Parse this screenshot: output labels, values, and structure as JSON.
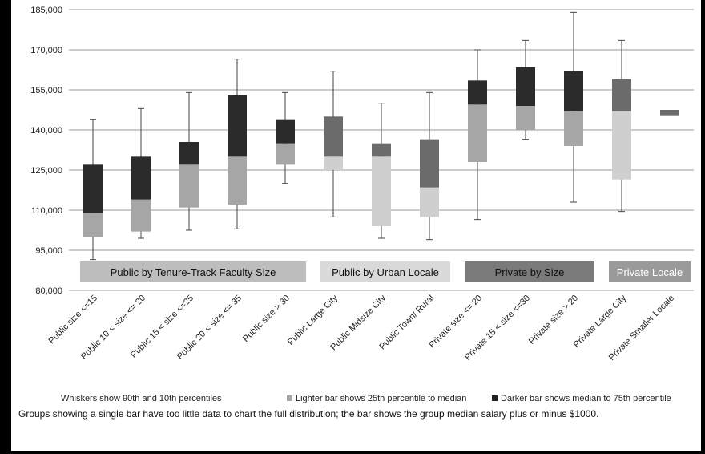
{
  "chart_data": {
    "type": "box",
    "ylim": [
      80000,
      185000
    ],
    "y_ticks": [
      "80,000",
      "95,000",
      "110,000",
      "125,000",
      "140,000",
      "155,000",
      "170,000",
      "185,000"
    ],
    "y_tick_values": [
      80000,
      95000,
      110000,
      125000,
      140000,
      155000,
      170000,
      185000
    ],
    "grid": true,
    "categories": [
      "Public size <=15",
      "Public 10 < size <= 20",
      "Public 15 < size <=25",
      "Public 20 < size <= 35",
      "Public size > 30",
      "Public Large City",
      "Public Midsize City",
      "Public Town/ Rural",
      "Private size <= 20",
      "Private 15 < size <=30",
      "Private size > 20",
      "Private Large City",
      "Private Smaller Locale"
    ],
    "boxes": [
      {
        "p10": 91500,
        "p25": 100000,
        "median": 109000,
        "p75": 127000,
        "p90": 144000,
        "shade": "dark"
      },
      {
        "p10": 99500,
        "p25": 102000,
        "median": 114000,
        "p75": 130000,
        "p90": 148000,
        "shade": "dark"
      },
      {
        "p10": 102500,
        "p25": 111000,
        "median": 127000,
        "p75": 135500,
        "p90": 154000,
        "shade": "dark"
      },
      {
        "p10": 103000,
        "p25": 112000,
        "median": 130000,
        "p75": 153000,
        "p90": 166500,
        "shade": "dark"
      },
      {
        "p10": 120000,
        "p25": 127000,
        "median": 135000,
        "p75": 144000,
        "p90": 154000,
        "shade": "dark"
      },
      {
        "p10": 107500,
        "p25": 125000,
        "median": 130000,
        "p75": 145000,
        "p90": 162000,
        "shade": "medium"
      },
      {
        "p10": 99500,
        "p25": 104000,
        "median": 130000,
        "p75": 135000,
        "p90": 150000,
        "shade": "medium"
      },
      {
        "p10": 99000,
        "p25": 107500,
        "median": 118500,
        "p75": 136500,
        "p90": 154000,
        "shade": "medium"
      },
      {
        "p10": 106500,
        "p25": 128000,
        "median": 149500,
        "p75": 158500,
        "p90": 170000,
        "shade": "dark"
      },
      {
        "p10": 136500,
        "p25": 140000,
        "median": 149000,
        "p75": 163500,
        "p90": 173500,
        "shade": "dark"
      },
      {
        "p10": 113000,
        "p25": 134000,
        "median": 147000,
        "p75": 162000,
        "p90": 184000,
        "shade": "dark"
      },
      {
        "p10": 109500,
        "p25": 121500,
        "median": 147000,
        "p75": 159000,
        "p90": 173500,
        "shade": "medium"
      },
      {
        "single": true,
        "median": 146500,
        "low": 145500,
        "high": 147500,
        "shade": "medium"
      }
    ],
    "groups": [
      {
        "label": "Public by Tenure-Track Faculty Size",
        "from": 0,
        "to": 4,
        "bg": "#bdbdbd",
        "fg": "#111111"
      },
      {
        "label": "Public by Urban Locale",
        "from": 5,
        "to": 7,
        "bg": "#d9d9d9",
        "fg": "#111111"
      },
      {
        "label": "Private by Size",
        "from": 8,
        "to": 10,
        "bg": "#7a7a7a",
        "fg": "#111111"
      },
      {
        "label": "Private Locale",
        "from": 11,
        "to": 12,
        "bg": "#9a9a9a",
        "fg": "#ffffff"
      }
    ],
    "legend": [
      {
        "label": "Whiskers show 90th and 10th percentiles",
        "marker": "none"
      },
      {
        "label": "Lighter bar shows 25th percentile to median",
        "marker": "light"
      },
      {
        "label": "Darker bar shows median to 75th percentile",
        "marker": "dark"
      }
    ],
    "footnote": "Groups showing a single bar have too little data to chart the full distribution;  the bar shows the group median salary plus or minus $1000.",
    "colors": {
      "dark_upper": "#2b2b2b",
      "dark_lower": "#a6a6a6",
      "medium_upper": "#6b6b6b",
      "medium_lower": "#cfcfcf",
      "grid": "#9a9a9a",
      "whisker": "#444444",
      "legend_light": "#a6a6a6",
      "legend_dark": "#222222"
    }
  }
}
